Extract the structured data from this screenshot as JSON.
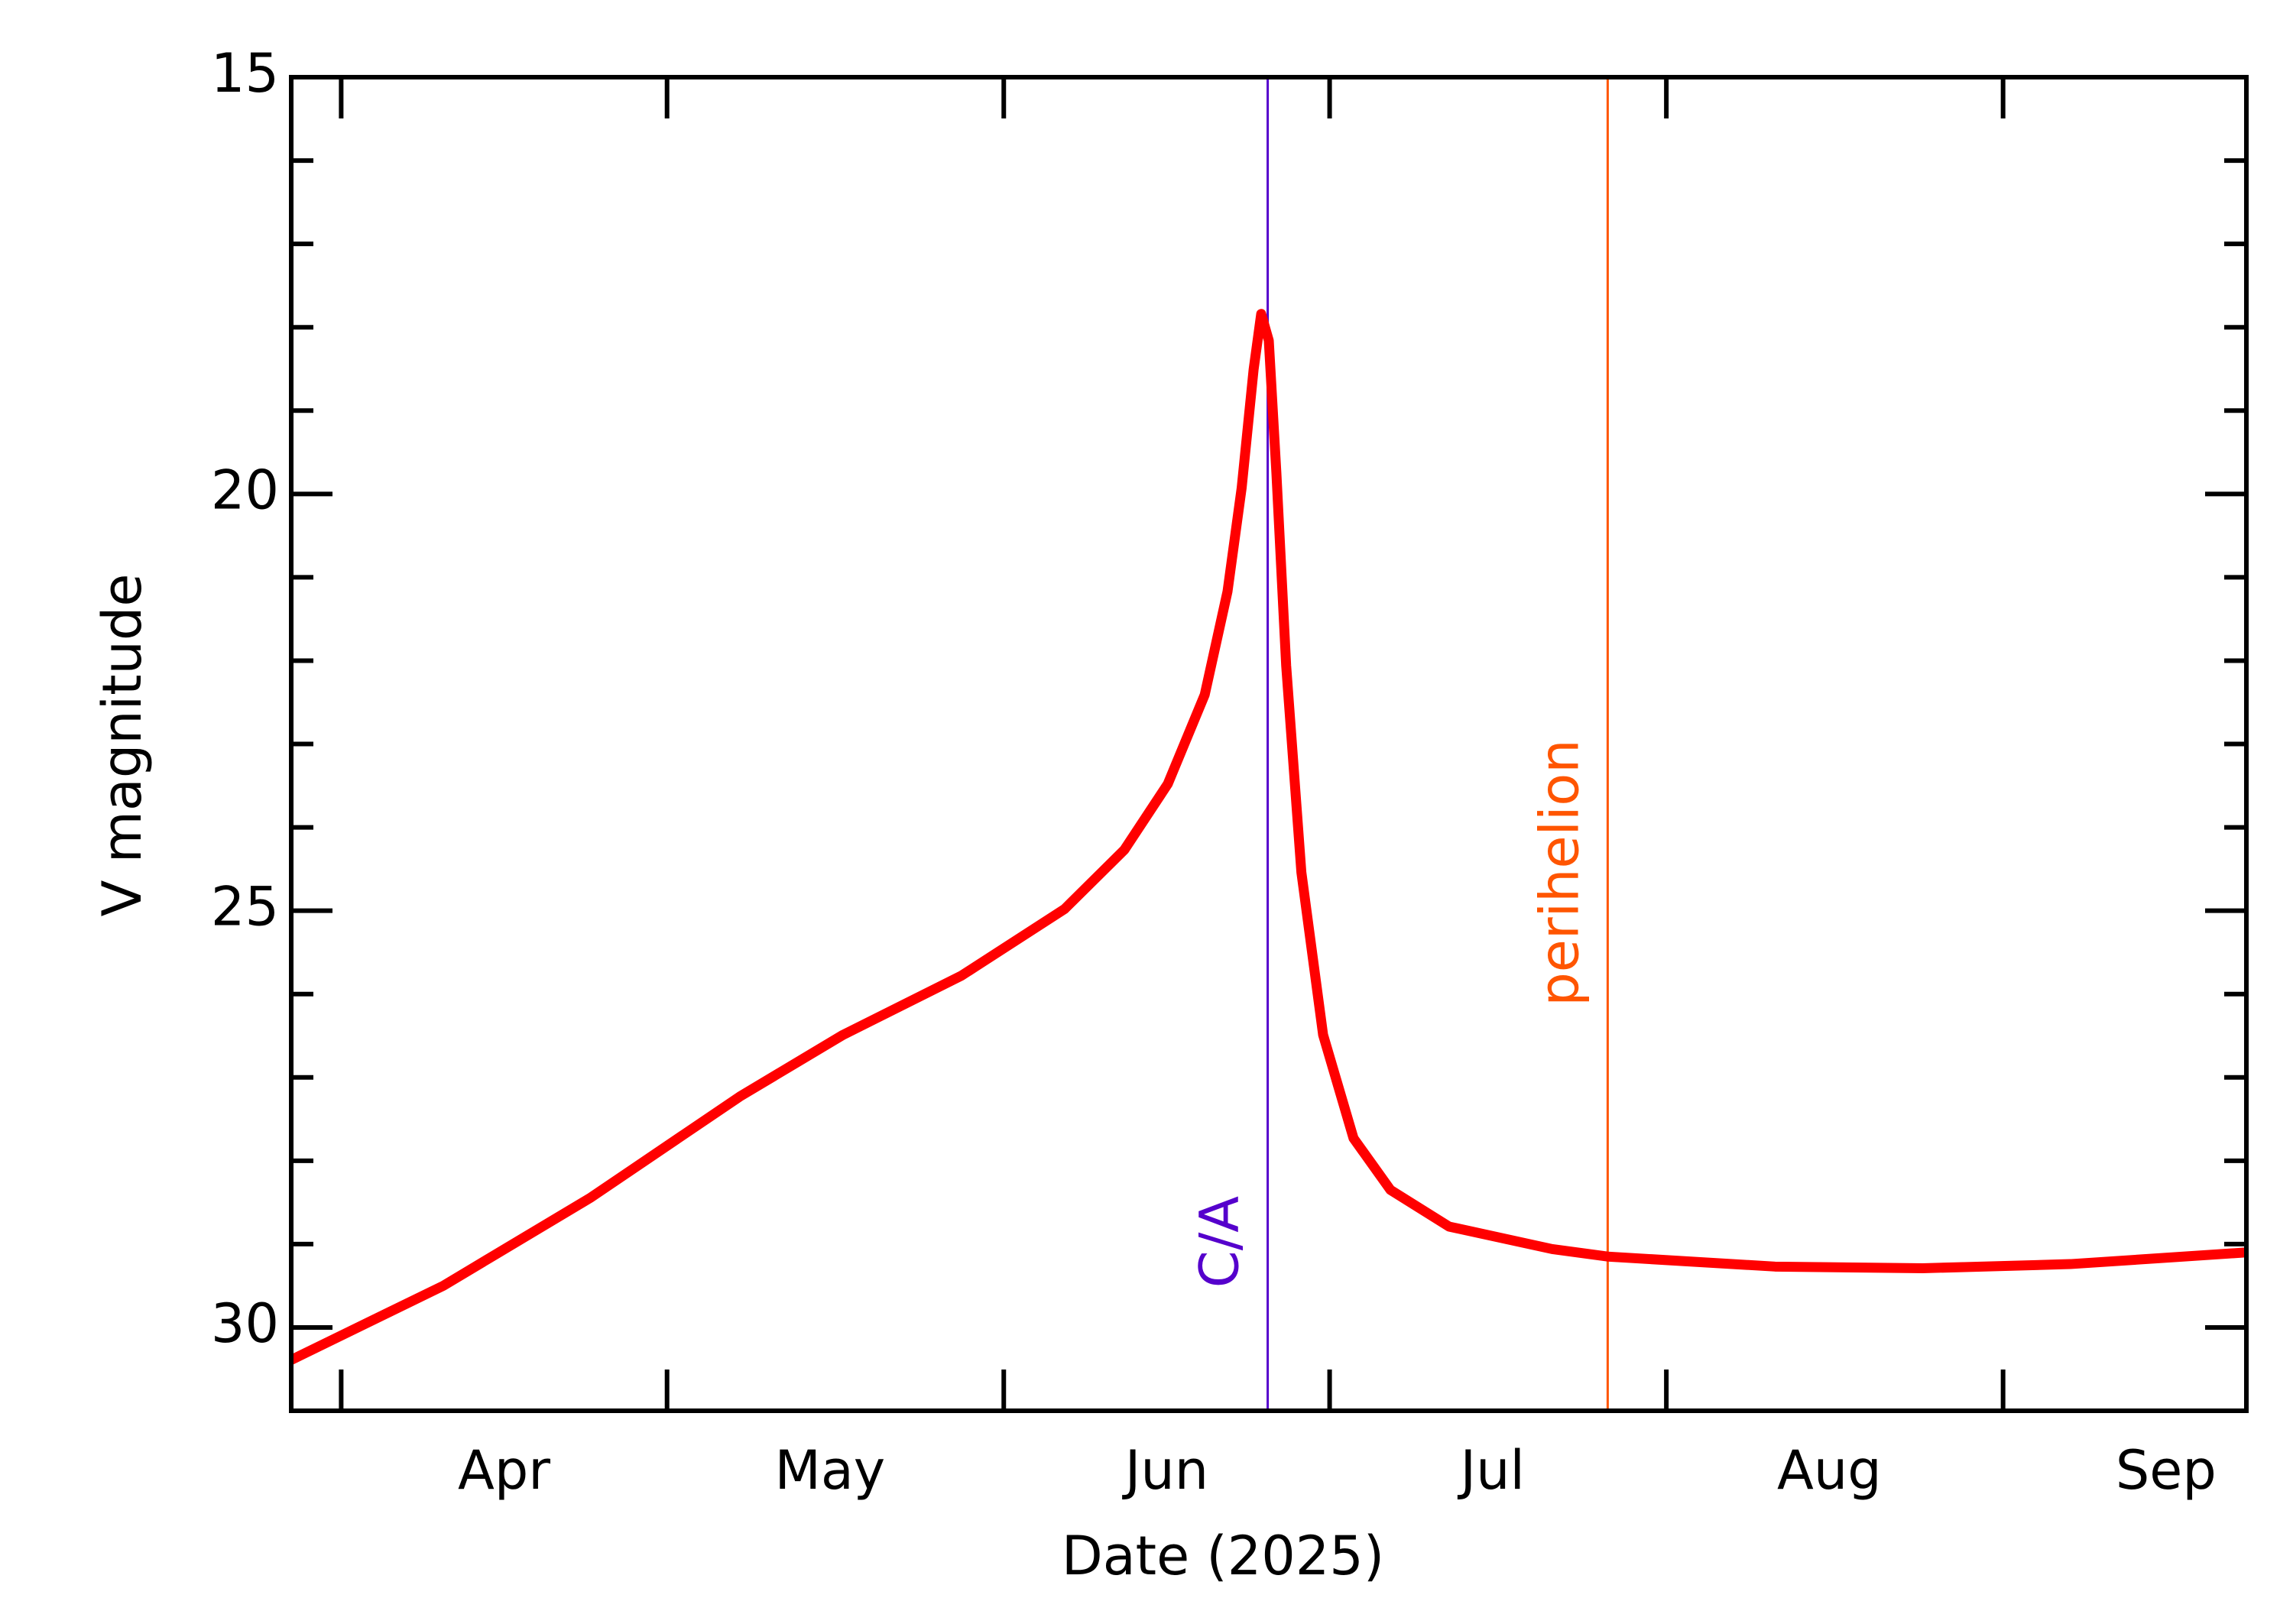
{
  "chart_data": {
    "type": "line",
    "xlabel": "Date (2025)",
    "ylabel": "V magnitude",
    "x": [
      86.4,
      100.4,
      114.0,
      127.7,
      137.2,
      148.1,
      157.6,
      163.1,
      167.1,
      170.5,
      172.6,
      173.9,
      175.0,
      175.7,
      176.4,
      177.1,
      178.0,
      179.4,
      181.4,
      184.2,
      187.6,
      193.0,
      202.5,
      207.6,
      223.0,
      236.6,
      250.2,
      266.4
    ],
    "series": [
      {
        "name": "V magnitude",
        "color": "#ff0000",
        "values": [
          30.39,
          29.5,
          28.44,
          27.23,
          26.49,
          25.78,
          24.98,
          24.27,
          23.48,
          22.41,
          21.17,
          19.93,
          18.51,
          17.84,
          18.16,
          19.75,
          22.06,
          24.54,
          26.49,
          27.73,
          28.35,
          28.79,
          29.06,
          29.15,
          29.27,
          29.29,
          29.24,
          29.1
        ]
      }
    ],
    "xlim": [
      86.4,
      266.4
    ],
    "xticks": [
      {
        "value": 91,
        "label": "Apr"
      },
      {
        "value": 121,
        "label": "May"
      },
      {
        "value": 152,
        "label": "Jun"
      },
      {
        "value": 182,
        "label": "Jul"
      },
      {
        "value": 213,
        "label": "Aug"
      },
      {
        "value": 244,
        "label": "Sep"
      }
    ],
    "ylim": [
      15,
      31
    ],
    "yticks": [
      15,
      20,
      25,
      30
    ],
    "yminorticks": [
      16,
      17,
      18,
      19,
      21,
      22,
      23,
      24,
      26,
      27,
      28,
      29,
      31
    ],
    "y_inverted": true,
    "annotations": [
      {
        "x": 176.3,
        "label": "C/A",
        "color": "#5500cc"
      },
      {
        "x": 207.6,
        "label": "perihelion",
        "color": "#ff5500"
      }
    ]
  }
}
